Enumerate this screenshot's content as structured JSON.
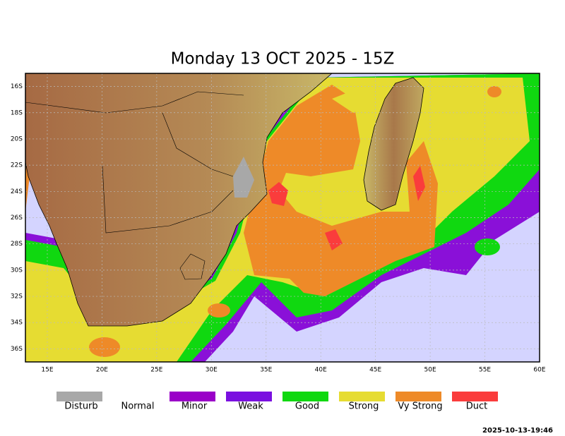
{
  "title": "Monday 13 OCT 2025 - 15Z",
  "map": {
    "xlim": [
      13,
      60
    ],
    "ylim": [
      -15,
      -37
    ],
    "xticks": [
      {
        "value": 15,
        "label": "15E"
      },
      {
        "value": 20,
        "label": "20E"
      },
      {
        "value": 25,
        "label": "25E"
      },
      {
        "value": 30,
        "label": "30E"
      },
      {
        "value": 35,
        "label": "35E"
      },
      {
        "value": 40,
        "label": "40E"
      },
      {
        "value": 45,
        "label": "45E"
      },
      {
        "value": 50,
        "label": "50E"
      },
      {
        "value": 55,
        "label": "55E"
      },
      {
        "value": 60,
        "label": "60E"
      }
    ],
    "yticks": [
      {
        "value": -16,
        "label": "16S"
      },
      {
        "value": -18,
        "label": "18S"
      },
      {
        "value": -20,
        "label": "20S"
      },
      {
        "value": -22,
        "label": "22S"
      },
      {
        "value": -24,
        "label": "24S"
      },
      {
        "value": -26,
        "label": "26S"
      },
      {
        "value": -28,
        "label": "28S"
      },
      {
        "value": -30,
        "label": "30S"
      },
      {
        "value": -32,
        "label": "32S"
      },
      {
        "value": -34,
        "label": "34S"
      },
      {
        "value": -36,
        "label": "36S"
      }
    ],
    "grid": true
  },
  "legend": [
    {
      "name": "Disturb",
      "color": "#a8a8a8"
    },
    {
      "name": "Normal",
      "color": "#ffffff"
    },
    {
      "name": "Minor",
      "color": "#9a00c8"
    },
    {
      "name": "Weak",
      "color": "#7a10e0"
    },
    {
      "name": "Good",
      "color": "#10d810"
    },
    {
      "name": "Strong",
      "color": "#e6dc32"
    },
    {
      "name": "Vy Strong",
      "color": "#ee8a28"
    },
    {
      "name": "Duct",
      "color": "#fa3c3c"
    }
  ],
  "timestamp": "2025-10-13-19:46"
}
